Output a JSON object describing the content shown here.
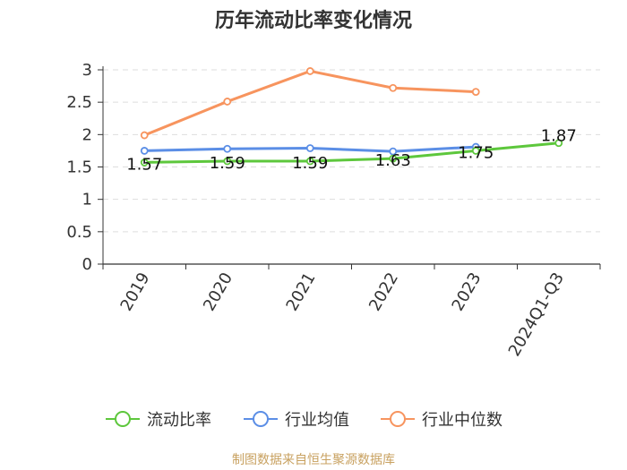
{
  "chart_data": {
    "type": "line",
    "title": "历年流动比率变化情况",
    "categories": [
      "2019",
      "2020",
      "2021",
      "2022",
      "2023",
      "2024Q1-Q3"
    ],
    "ylim": [
      0,
      3
    ],
    "yticks": [
      "0",
      "0.5",
      "1",
      "1.5",
      "2",
      "2.5",
      "3"
    ],
    "grid": true,
    "legend_position": "bottom",
    "series": [
      {
        "name": "流动比率",
        "color": "#5dc73c",
        "values": [
          1.57,
          1.59,
          1.59,
          1.63,
          1.75,
          1.87
        ],
        "labels": [
          "1.57",
          "1.59",
          "1.59",
          "1.63",
          "1.75",
          "1.87"
        ]
      },
      {
        "name": "行业均值",
        "color": "#5b8ee6",
        "values": [
          1.75,
          1.78,
          1.79,
          1.74,
          1.81,
          null
        ]
      },
      {
        "name": "行业中位数",
        "color": "#f7945e",
        "values": [
          1.99,
          2.51,
          2.98,
          2.72,
          2.66,
          null
        ]
      }
    ],
    "source": "制图数据来自恒生聚源数据库"
  }
}
